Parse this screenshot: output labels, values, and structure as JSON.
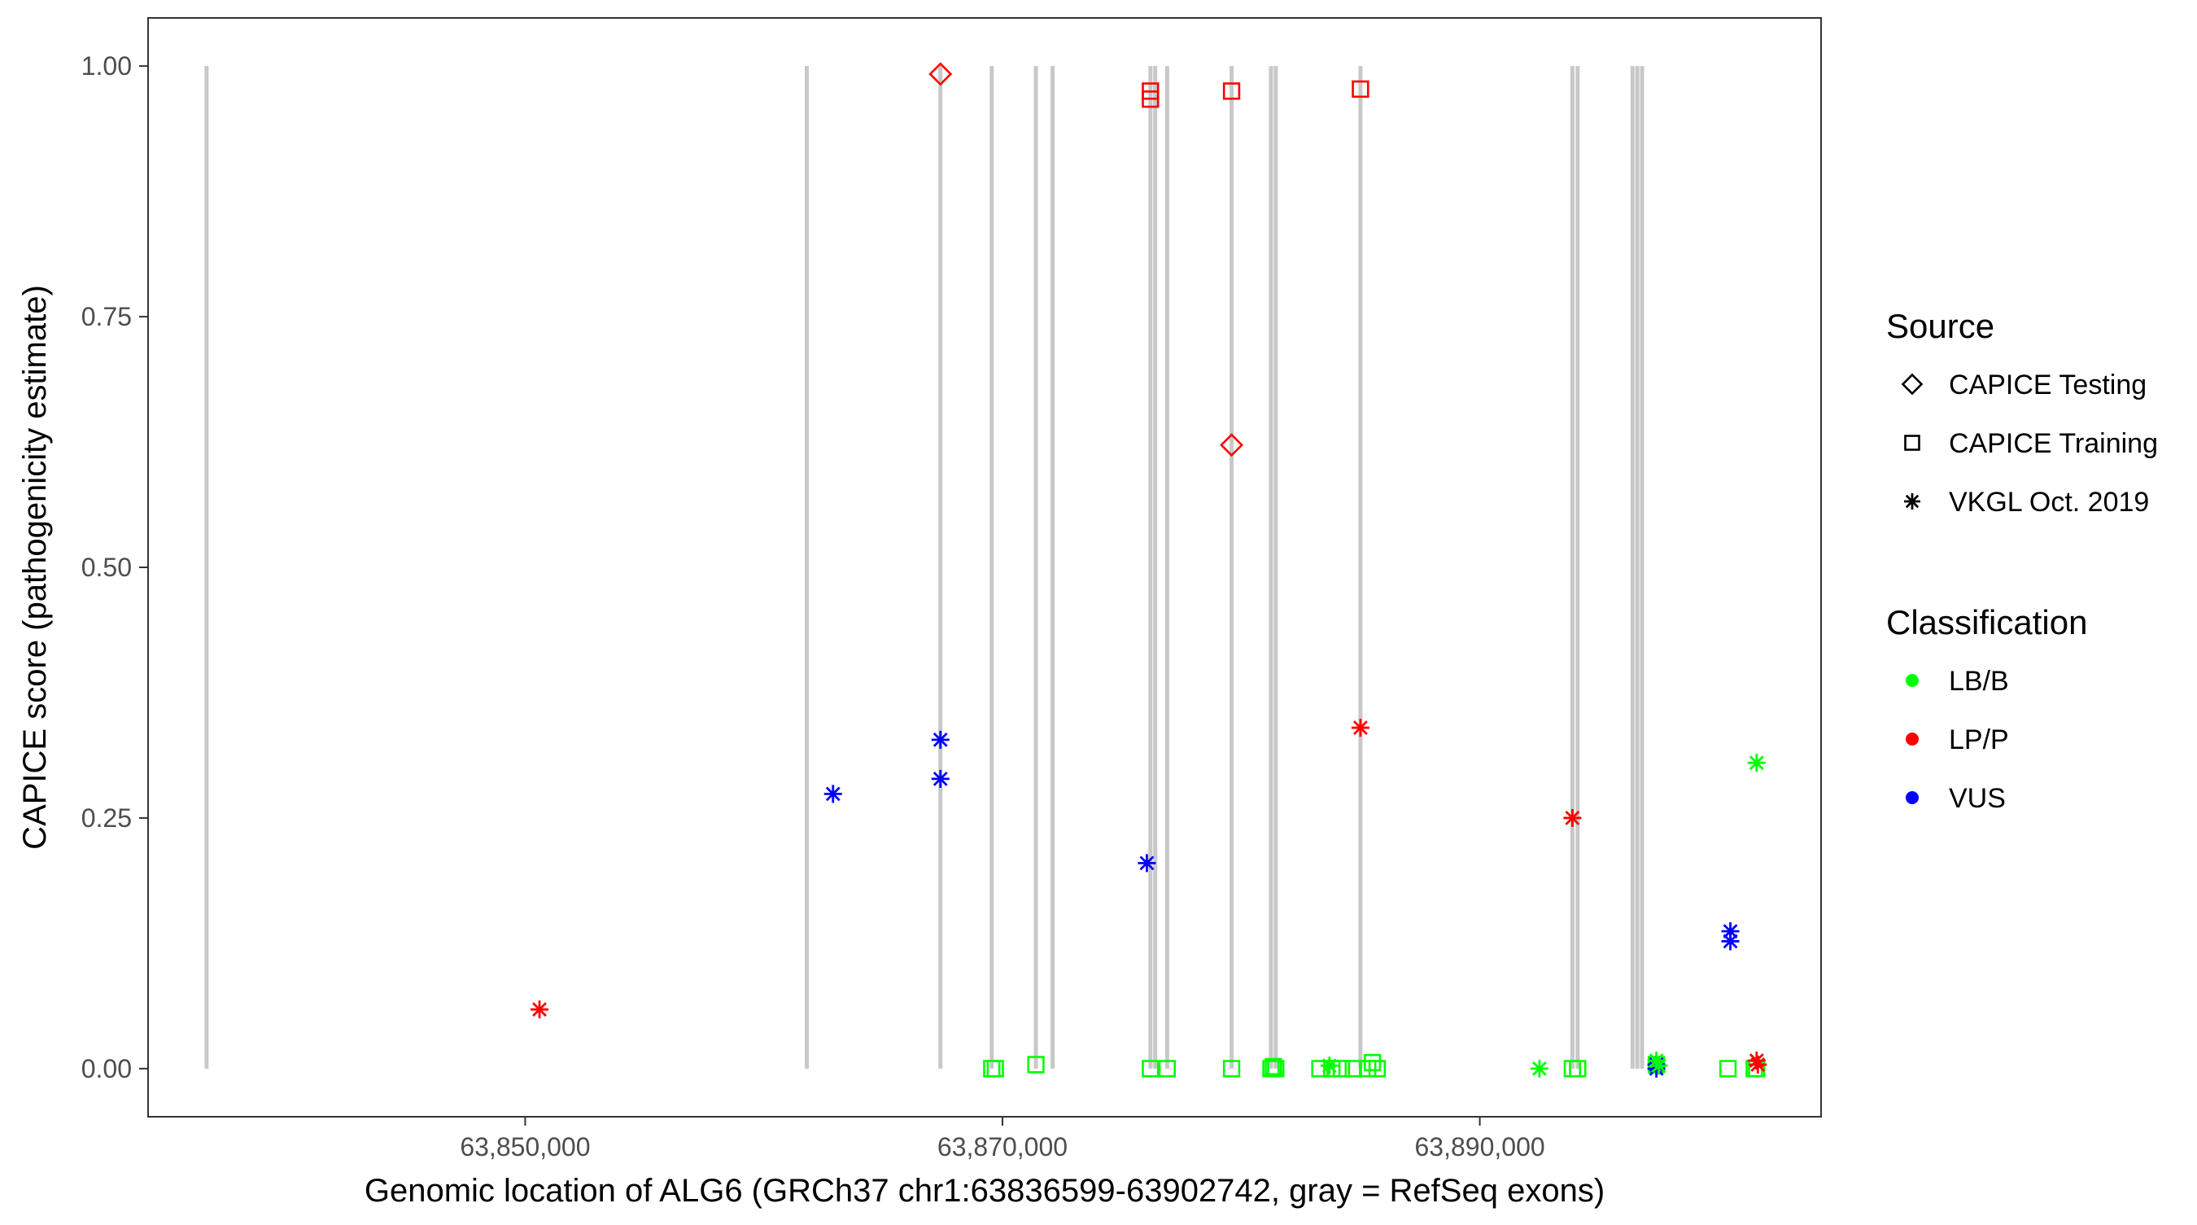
{
  "chart_data": {
    "type": "scatter",
    "title": "",
    "xlabel": "Genomic location of ALG6 (GRCh37 chr1:63836599-63902742, gray = RefSeq exons)",
    "ylabel": "CAPICE score (pathogenicity estimate)",
    "xlim": [
      63834200,
      63904300
    ],
    "ylim": [
      -0.048,
      1.048
    ],
    "x_ticks": [
      {
        "value": 63850000,
        "label": "63,850,000"
      },
      {
        "value": 63870000,
        "label": "63,870,000"
      },
      {
        "value": 63890000,
        "label": "63,890,000"
      }
    ],
    "y_ticks": [
      {
        "value": 0.0,
        "label": "0.00"
      },
      {
        "value": 0.25,
        "label": "0.25"
      },
      {
        "value": 0.5,
        "label": "0.50"
      },
      {
        "value": 0.75,
        "label": "0.75"
      },
      {
        "value": 1.0,
        "label": "1.00"
      }
    ],
    "grid": false,
    "exons": [
      63836650,
      63861800,
      63867400,
      63869550,
      63871400,
      63872100,
      63876200,
      63876400,
      63876900,
      63879600,
      63881250,
      63881450,
      63885000,
      63893880,
      63894100,
      63896400,
      63896600,
      63896800
    ],
    "legend": {
      "placement": "right",
      "source_title": "Source",
      "source_entries": [
        {
          "label": "CAPICE Testing",
          "shape": "diamond"
        },
        {
          "label": "CAPICE Training",
          "shape": "square"
        },
        {
          "label": "VKGL Oct. 2019",
          "shape": "asterisk"
        }
      ],
      "class_title": "Classification",
      "class_entries": [
        {
          "label": "LB/B",
          "color": "#00ff00"
        },
        {
          "label": "LP/P",
          "color": "#ff0000"
        },
        {
          "label": "VUS",
          "color": "#0000ff"
        }
      ]
    },
    "series": [
      {
        "source": "CAPICE Testing",
        "classification": "LP/P",
        "points": [
          [
            63867400,
            0.992
          ],
          [
            63879600,
            0.622
          ]
        ]
      },
      {
        "source": "CAPICE Training",
        "classification": "LP/P",
        "points": [
          [
            63876200,
            0.975
          ],
          [
            63876200,
            0.967
          ],
          [
            63879600,
            0.975
          ],
          [
            63885000,
            0.977
          ]
        ]
      },
      {
        "source": "CAPICE Training",
        "classification": "LB/B",
        "points": [
          [
            63869550,
            0.0
          ],
          [
            63869700,
            0.0
          ],
          [
            63871400,
            0.004
          ],
          [
            63876200,
            0.0
          ],
          [
            63876900,
            0.0
          ],
          [
            63879600,
            0.0
          ],
          [
            63881250,
            0.0
          ],
          [
            63881350,
            0.002
          ],
          [
            63881450,
            0.0
          ],
          [
            63883300,
            0.0
          ],
          [
            63883800,
            0.0
          ],
          [
            63884200,
            0.0
          ],
          [
            63884700,
            0.0
          ],
          [
            63885300,
            0.0
          ],
          [
            63885500,
            0.006
          ],
          [
            63885700,
            0.0
          ],
          [
            63893880,
            0.0
          ],
          [
            63894100,
            0.0
          ],
          [
            63897400,
            0.004
          ],
          [
            63900400,
            0.0
          ],
          [
            63901500,
            0.0
          ],
          [
            63901600,
            0.0
          ]
        ]
      },
      {
        "source": "VKGL Oct. 2019",
        "classification": "LP/P",
        "points": [
          [
            63850600,
            0.059
          ],
          [
            63885000,
            0.34
          ],
          [
            63893880,
            0.25
          ],
          [
            63901600,
            0.008
          ],
          [
            63901650,
            0.004
          ]
        ]
      },
      {
        "source": "VKGL Oct. 2019",
        "classification": "VUS",
        "points": [
          [
            63862900,
            0.274
          ],
          [
            63867400,
            0.328
          ],
          [
            63867400,
            0.289
          ],
          [
            63876050,
            0.205
          ],
          [
            63900500,
            0.137
          ],
          [
            63900500,
            0.127
          ],
          [
            63897400,
            0.0
          ],
          [
            63897400,
            0.004
          ]
        ]
      },
      {
        "source": "VKGL Oct. 2019",
        "classification": "LB/B",
        "points": [
          [
            63901600,
            0.305
          ],
          [
            63892500,
            0.0
          ],
          [
            63883700,
            0.003
          ],
          [
            63897400,
            0.008
          ],
          [
            63897500,
            0.003
          ]
        ]
      }
    ]
  }
}
